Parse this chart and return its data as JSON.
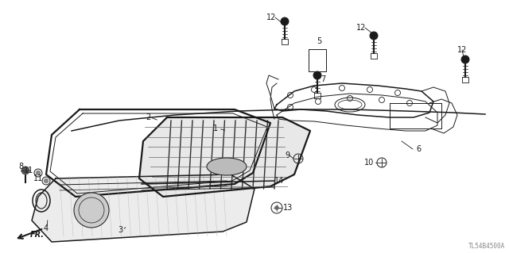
{
  "background_color": "#ffffff",
  "watermark": "TL54B4500A",
  "line_color": "#1a1a1a",
  "figsize": [
    6.4,
    3.19
  ],
  "dpi": 100,
  "label_fontsize": 7.0
}
